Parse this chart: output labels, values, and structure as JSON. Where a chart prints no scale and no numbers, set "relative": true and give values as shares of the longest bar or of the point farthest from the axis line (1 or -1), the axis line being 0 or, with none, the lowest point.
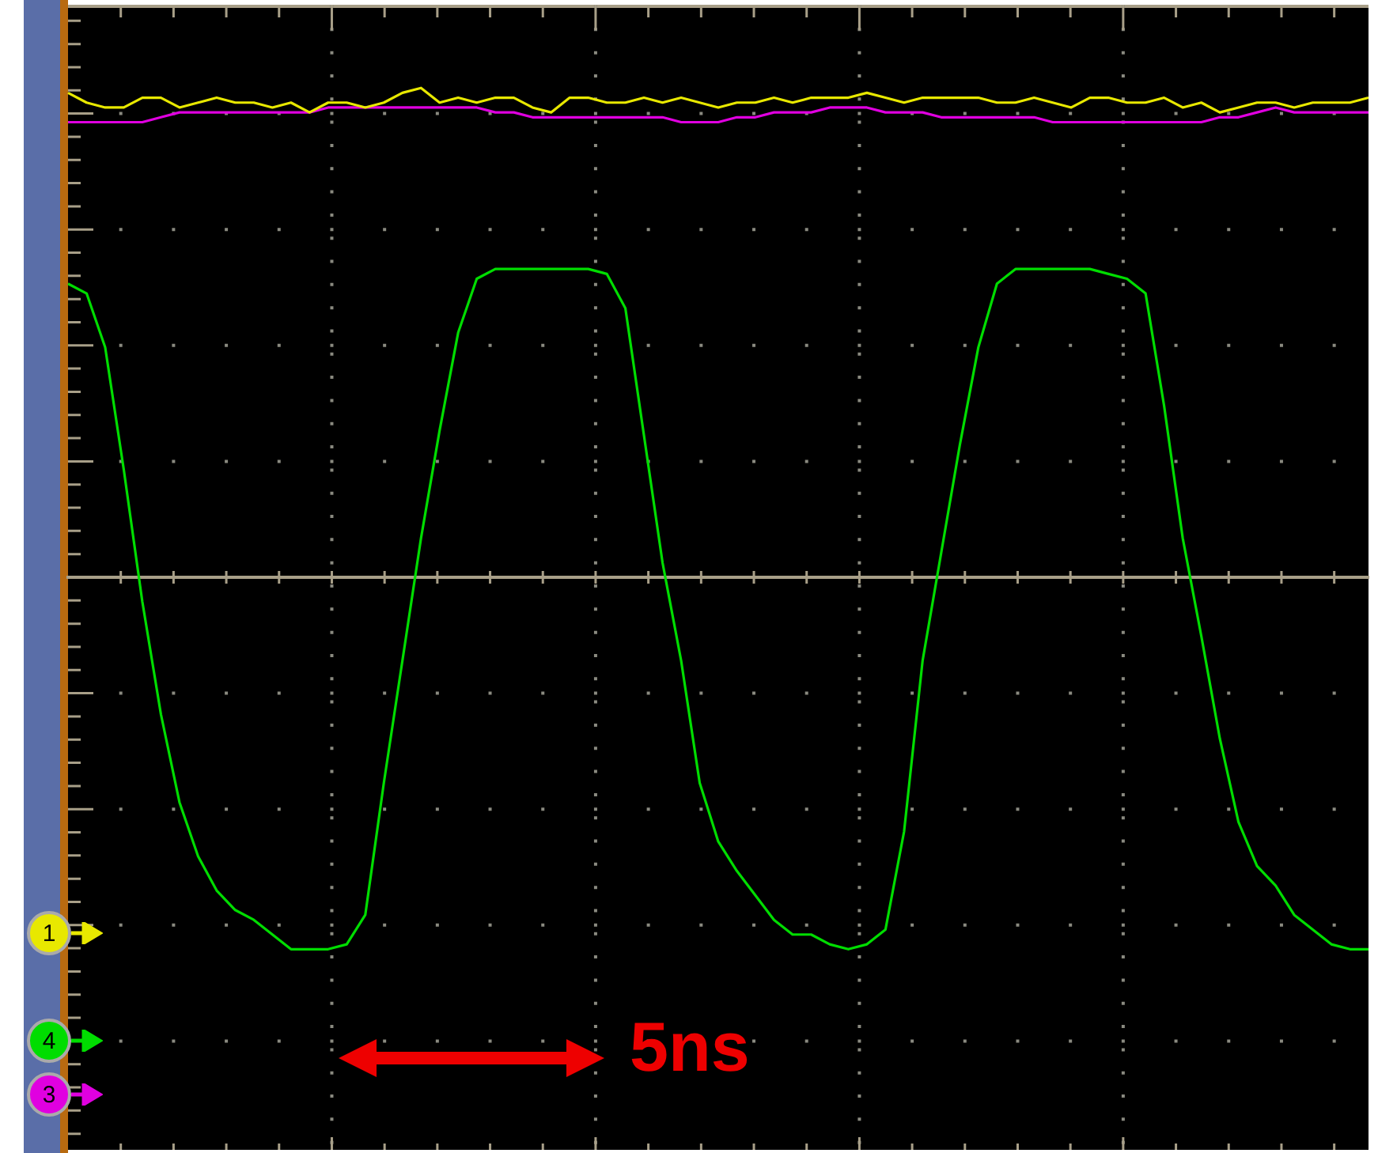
{
  "chart_data": {
    "type": "line",
    "relative": true,
    "legend": "bottom left",
    "marker": "none",
    "line_style": "solid",
    "categories": [
      null,
      null,
      null,
      null,
      null,
      null,
      null,
      null,
      null,
      null,
      null,
      null,
      null,
      null,
      null,
      null,
      null,
      null,
      null,
      null,
      null,
      null,
      null,
      null,
      null,
      null,
      null,
      null,
      null,
      null,
      null,
      null,
      null,
      null,
      null,
      null,
      null,
      null,
      null,
      null,
      null,
      null,
      null,
      null,
      null,
      null,
      null,
      null,
      null,
      null,
      null,
      null,
      null,
      null,
      null,
      null,
      null,
      null,
      null,
      null,
      null,
      null,
      null,
      null,
      null,
      null,
      null,
      null,
      null,
      null,
      null
    ],
    "series": [
      {
        "name": "1",
        "color": "#e8e800",
        "values": [
          0.99,
          0.97,
          0.96,
          0.96,
          0.98,
          0.98,
          0.96,
          0.97,
          0.98,
          0.97,
          0.97,
          0.96,
          0.97,
          0.95,
          0.97,
          0.97,
          0.96,
          0.97,
          0.99,
          1.0,
          0.97,
          0.98,
          0.97,
          0.98,
          0.98,
          0.96,
          0.95,
          0.98,
          0.98,
          0.97,
          0.97,
          0.98,
          0.97,
          0.98,
          0.97,
          0.96,
          0.97,
          0.97,
          0.98,
          0.97,
          0.98,
          0.98,
          0.98,
          0.99,
          0.98,
          0.97,
          0.98,
          0.98,
          0.98,
          0.98,
          0.97,
          0.97,
          0.98,
          0.97,
          0.96,
          0.98,
          0.98,
          0.97,
          0.97,
          0.98,
          0.96,
          0.97,
          0.95,
          0.96,
          0.97,
          0.97,
          0.96,
          0.97,
          0.97,
          0.97,
          0.98
        ]
      },
      {
        "name": "4",
        "color": "#00dd00",
        "values": [
          0.6,
          0.58,
          0.47,
          0.22,
          -0.05,
          -0.28,
          -0.46,
          -0.57,
          -0.64,
          -0.68,
          -0.7,
          -0.73,
          -0.76,
          -0.76,
          -0.76,
          -0.75,
          -0.69,
          -0.42,
          -0.17,
          0.08,
          0.3,
          0.5,
          0.61,
          0.63,
          0.63,
          0.63,
          0.63,
          0.63,
          0.63,
          0.62,
          0.55,
          0.29,
          0.03,
          -0.17,
          -0.42,
          -0.54,
          -0.6,
          -0.65,
          -0.7,
          -0.73,
          -0.73,
          -0.75,
          -0.76,
          -0.75,
          -0.72,
          -0.52,
          -0.17,
          0.05,
          0.27,
          0.47,
          0.6,
          0.63,
          0.63,
          0.63,
          0.63,
          0.63,
          0.62,
          0.61,
          0.58,
          0.35,
          0.08,
          -0.12,
          -0.33,
          -0.5,
          -0.59,
          -0.63,
          -0.69,
          -0.72,
          -0.75,
          -0.76,
          -0.76
        ]
      },
      {
        "name": "3",
        "color": "#e000e0",
        "values": [
          0.93,
          0.93,
          0.93,
          0.93,
          0.93,
          0.94,
          0.95,
          0.95,
          0.95,
          0.95,
          0.95,
          0.95,
          0.95,
          0.95,
          0.96,
          0.96,
          0.96,
          0.96,
          0.96,
          0.96,
          0.96,
          0.96,
          0.96,
          0.95,
          0.95,
          0.94,
          0.94,
          0.94,
          0.94,
          0.94,
          0.94,
          0.94,
          0.94,
          0.93,
          0.93,
          0.93,
          0.94,
          0.94,
          0.95,
          0.95,
          0.95,
          0.96,
          0.96,
          0.96,
          0.95,
          0.95,
          0.95,
          0.94,
          0.94,
          0.94,
          0.94,
          0.94,
          0.94,
          0.93,
          0.93,
          0.93,
          0.93,
          0.93,
          0.93,
          0.93,
          0.93,
          0.93,
          0.94,
          0.94,
          0.95,
          0.96,
          0.95,
          0.95,
          0.95,
          0.95,
          0.95
        ]
      }
    ],
    "annotations": [
      "5ns"
    ]
  }
}
